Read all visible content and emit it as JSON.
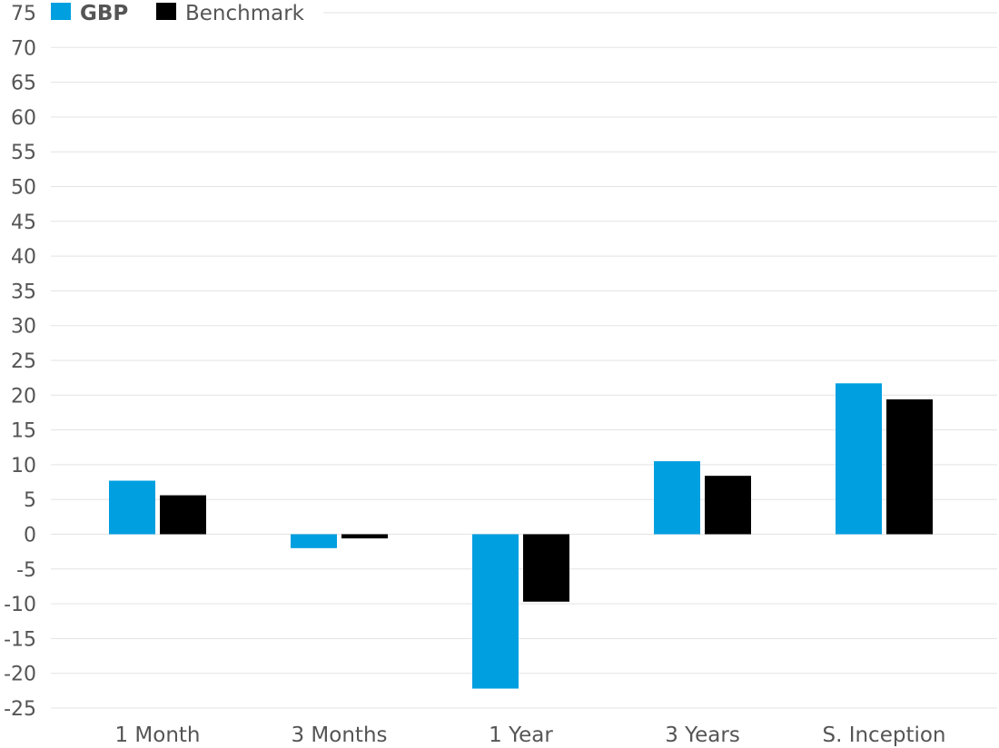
{
  "chart_data": {
    "type": "bar",
    "title": "",
    "xlabel": "",
    "ylabel": "",
    "ylim": [
      -25,
      75
    ],
    "ytick_step": 5,
    "yticks": [
      "75",
      "70",
      "65",
      "60",
      "55",
      "50",
      "45",
      "40",
      "35",
      "30",
      "25",
      "20",
      "15",
      "10",
      "5",
      "0",
      "-5",
      "-10",
      "-15",
      "-20",
      "-25"
    ],
    "grid": true,
    "legend_position": "top-left",
    "categories": [
      "1 Month",
      "3 Months",
      "1 Year",
      "3 Years",
      "S. Inception"
    ],
    "series": [
      {
        "name": "GBP",
        "color": "#009fe0",
        "values": [
          7.7,
          -2.0,
          -22.2,
          10.5,
          21.7
        ]
      },
      {
        "name": "Benchmark",
        "color": "#000000",
        "values": [
          5.6,
          -0.6,
          -9.7,
          8.4,
          19.4
        ]
      }
    ]
  }
}
